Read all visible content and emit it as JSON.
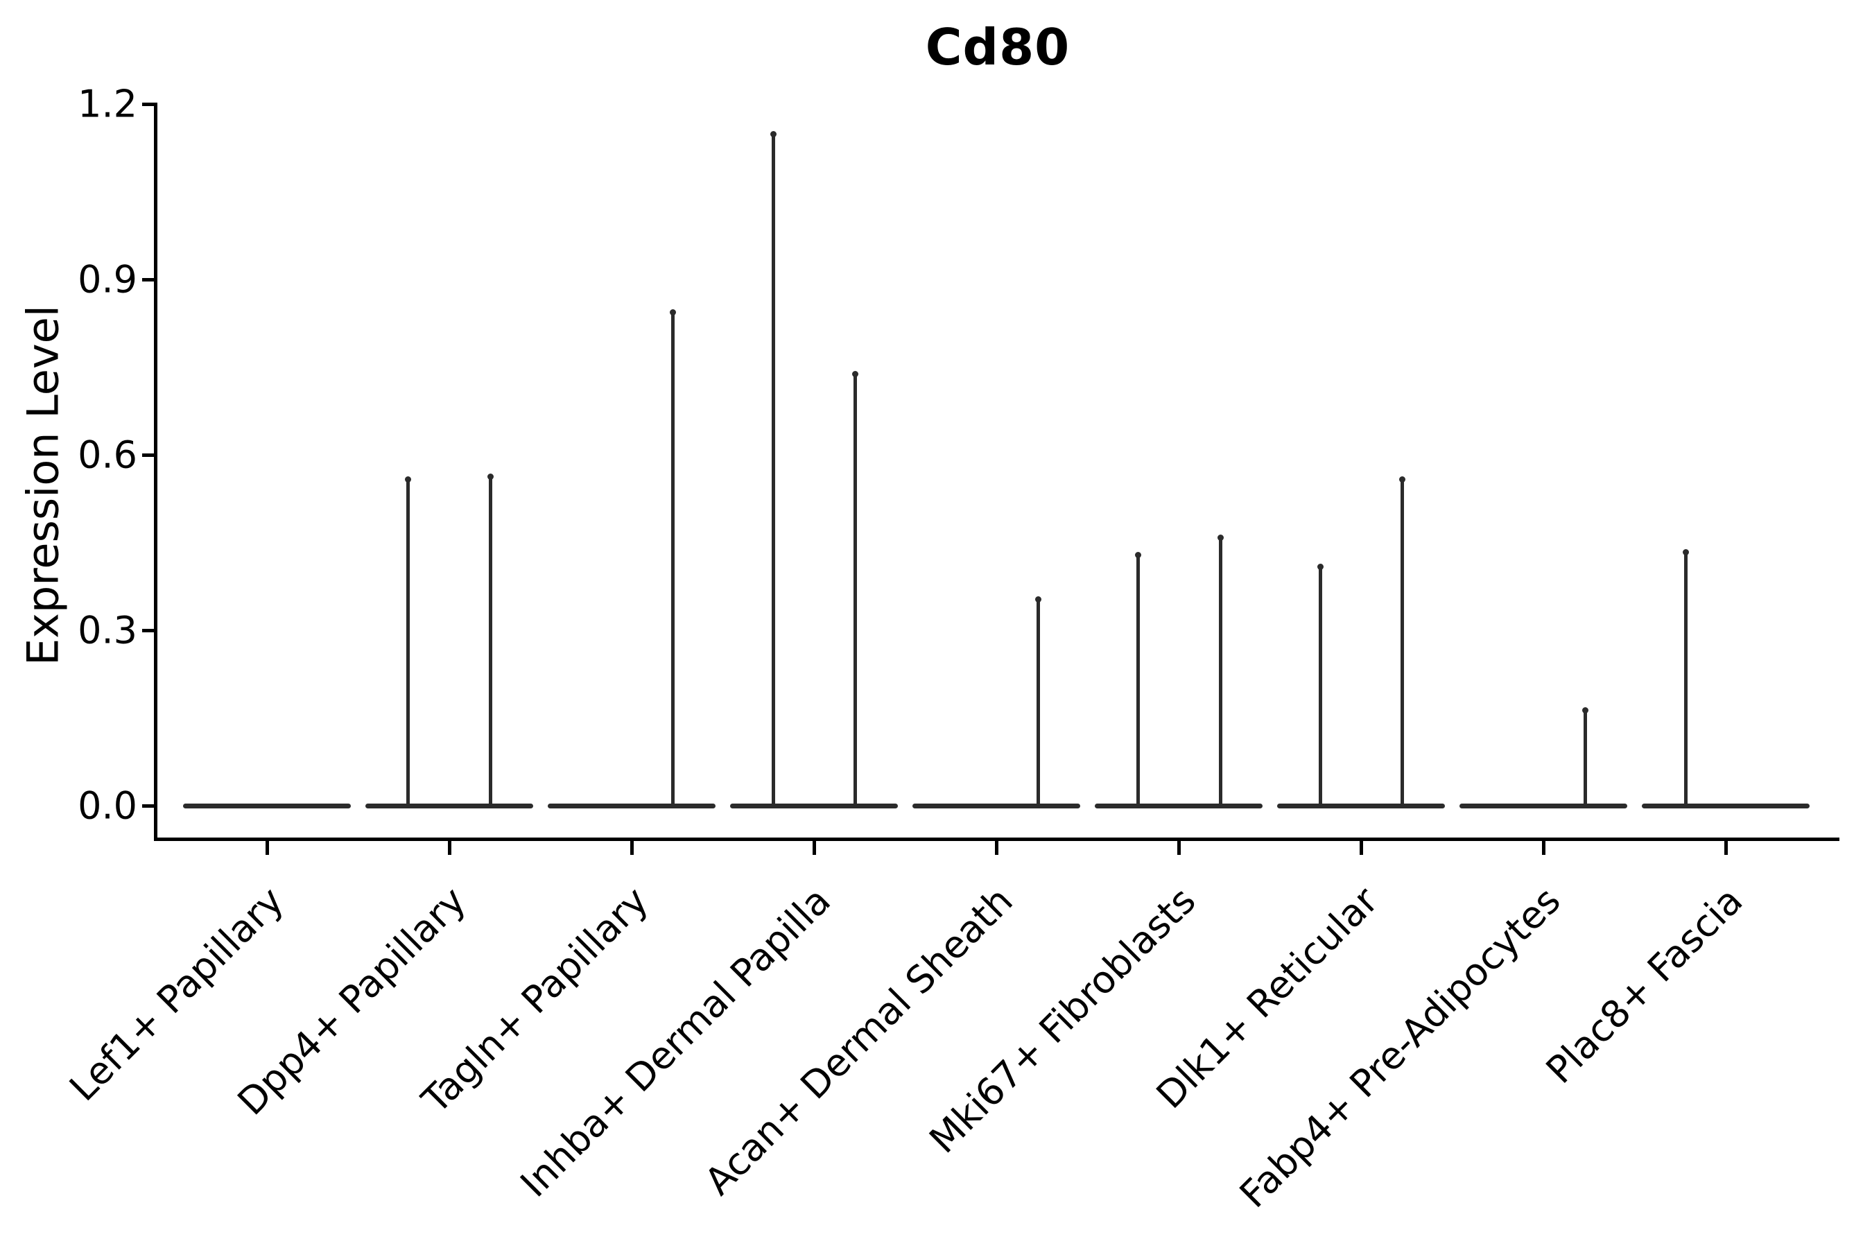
{
  "title": "Cd80",
  "y_axis": {
    "label": "Expression Level",
    "tick_labels": [
      "0.0",
      "0.3",
      "0.6",
      "0.9",
      "1.2"
    ],
    "tick_values": [
      0.0,
      0.3,
      0.6,
      0.9,
      1.2
    ]
  },
  "chart_data": {
    "type": "violin",
    "title": "Cd80",
    "xlabel": "",
    "ylabel": "Expression Level",
    "ylim": [
      0.0,
      1.2
    ],
    "yticks": [
      0.0,
      0.3,
      0.6,
      0.9,
      1.2
    ],
    "ytick_labels": [
      "0.0",
      "0.3",
      "0.6",
      "0.9",
      "1.2"
    ],
    "grid": false,
    "legend": "none",
    "categories": [
      "Lef1+ Papillary",
      "Dpp4+ Papillary",
      "Tagln+ Papillary",
      "Inhba+ Dermal Papilla",
      "Acan+ Dermal Sheath",
      "Mki67+ Fibroblasts",
      "Dlk1+ Reticular",
      "Fabp4+ Pre-Adipocytes",
      "Plac8+ Fascia"
    ],
    "description": "Violin plot of Cd80 expression; each violin collapses to a flat line at 0 with thin vertical spikes for rare expressing cells.",
    "violins": [
      {
        "category": "Lef1+ Papillary",
        "baseline_value": 0.0,
        "spikes": []
      },
      {
        "category": "Dpp4+ Papillary",
        "baseline_value": 0.0,
        "spikes": [
          {
            "x_offset": -60,
            "value": 0.56
          },
          {
            "x_offset": 59,
            "value": 0.565
          }
        ]
      },
      {
        "category": "Tagln+ Papillary",
        "baseline_value": 0.0,
        "spikes": [
          {
            "x_offset": 59,
            "value": 0.845
          }
        ]
      },
      {
        "category": "Inhba+ Dermal Papilla",
        "baseline_value": 0.0,
        "spikes": [
          {
            "x_offset": -59,
            "value": 1.15
          },
          {
            "x_offset": 59,
            "value": 0.74
          }
        ]
      },
      {
        "category": "Acan+ Dermal Sheath",
        "baseline_value": 0.0,
        "spikes": [
          {
            "x_offset": 60,
            "value": 0.355
          }
        ]
      },
      {
        "category": "Mki67+ Fibroblasts",
        "baseline_value": 0.0,
        "spikes": [
          {
            "x_offset": -59,
            "value": 0.43
          },
          {
            "x_offset": 60,
            "value": 0.46
          }
        ]
      },
      {
        "category": "Dlk1+ Reticular",
        "baseline_value": 0.0,
        "spikes": [
          {
            "x_offset": -59,
            "value": 0.41
          },
          {
            "x_offset": 59,
            "value": 0.56
          }
        ]
      },
      {
        "category": "Fabp4+ Pre-Adipocytes",
        "baseline_value": 0.0,
        "spikes": [
          {
            "x_offset": 60,
            "value": 0.165
          }
        ]
      },
      {
        "category": "Plac8+ Fascia",
        "baseline_value": 0.0,
        "spikes": [
          {
            "x_offset": -58,
            "value": 0.435
          }
        ]
      }
    ]
  },
  "colors": {
    "background": "#ffffff",
    "axis": "#000000",
    "text": "#000000",
    "violin_stroke": "#2b2b2b"
  }
}
